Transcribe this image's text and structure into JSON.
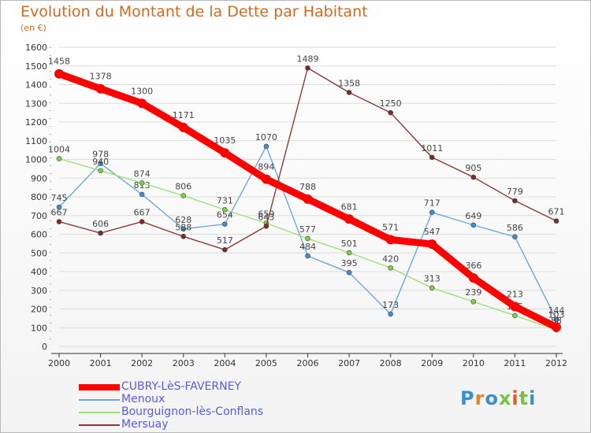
{
  "header": {
    "title": "Evolution du Montant de la Dette par Habitant",
    "subtitle": "(en €)"
  },
  "logo": {
    "text": "Proxiti"
  },
  "colors": {
    "title": "#d2691e",
    "legend_text": "#5a5ae0",
    "axis": "#333333",
    "grid": "#dcdcdc"
  },
  "chart_data": {
    "type": "line",
    "title": "Evolution du Montant de la Dette par Habitant",
    "subtitle": "(en €)",
    "xlabel": "",
    "ylabel": "",
    "x": [
      "2000",
      "2001",
      "2002",
      "2003",
      "2004",
      "2005",
      "2006",
      "2007",
      "2008",
      "2009",
      "2010",
      "2011",
      "2012"
    ],
    "ylim": [
      0,
      1600
    ],
    "yticks": [
      0,
      100,
      200,
      300,
      400,
      500,
      600,
      700,
      800,
      900,
      1000,
      1100,
      1200,
      1300,
      1400,
      1500,
      1600
    ],
    "grid": "horizontal",
    "legend_position": "bottom-left",
    "series": [
      {
        "name": "CUBRY-LèS-FAVERNEY",
        "color": "#ff0000",
        "marker": "#ff0000",
        "bold": true,
        "values": [
          1458,
          1378,
          1300,
          1171,
          1035,
          894,
          788,
          681,
          571,
          547,
          366,
          213,
          103
        ]
      },
      {
        "name": "Menoux",
        "color": "#6fa8d6",
        "marker": "#3b8ed8",
        "bold": false,
        "values": [
          745,
          978,
          813,
          628,
          654,
          1070,
          484,
          395,
          173,
          717,
          649,
          586,
          144
        ]
      },
      {
        "name": "Bourguignon-lès-Conflans",
        "color": "#9fe07a",
        "marker": "#7ed04a",
        "bold": false,
        "values": [
          1004,
          940,
          874,
          806,
          731,
          659,
          577,
          501,
          420,
          313,
          239,
          165,
          88
        ]
      },
      {
        "name": "Mersuay",
        "color": "#8b3a3a",
        "marker": "#7a2c2c",
        "bold": false,
        "values": [
          667,
          606,
          667,
          588,
          517,
          643,
          1489,
          1358,
          1250,
          1011,
          905,
          779,
          671
        ]
      }
    ]
  }
}
